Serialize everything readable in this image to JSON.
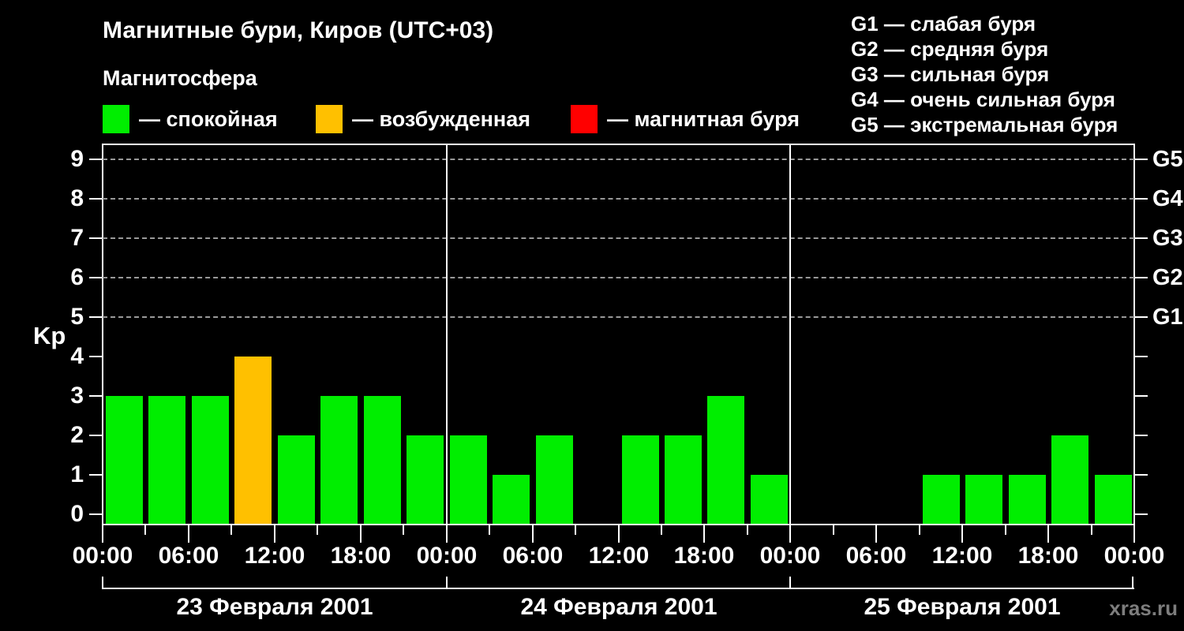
{
  "title": "Магнитные бури, Киров (UTC+03)",
  "subtitle": "Магнитосфера",
  "legend": {
    "quiet": {
      "label": "— спокойная",
      "color": "#00ee00"
    },
    "excited": {
      "label": "— возбужденная",
      "color": "#ffc000"
    },
    "storm": {
      "label": "— магнитная буря",
      "color": "#ff0000"
    }
  },
  "storm_scale": {
    "lines": [
      "G1 — слабая буря",
      "G2 — средняя буря",
      "G3 — сильная буря",
      "G4 — очень сильная буря",
      "G5 — экстремальная буря"
    ]
  },
  "watermark": "xras.ru",
  "chart_data": {
    "type": "bar",
    "title": "Магнитные бури, Киров (UTC+03)",
    "ylabel": "Kp",
    "ylim": [
      0,
      9.4
    ],
    "yticks": [
      0,
      1,
      2,
      3,
      4,
      5,
      6,
      7,
      8,
      9
    ],
    "grid_kp_levels": [
      5,
      6,
      7,
      8,
      9
    ],
    "right_axis_labels": [
      {
        "kp": 5,
        "label": "G1"
      },
      {
        "kp": 6,
        "label": "G2"
      },
      {
        "kp": 7,
        "label": "G3"
      },
      {
        "kp": 8,
        "label": "G4"
      },
      {
        "kp": 9,
        "label": "G5"
      }
    ],
    "hours_per_bar": 3,
    "x_tick_step_hours": 6,
    "x_tick_labels": [
      "00:00",
      "06:00",
      "12:00",
      "18:00",
      "00:00",
      "06:00",
      "12:00",
      "18:00",
      "00:00",
      "06:00",
      "12:00",
      "18:00",
      "00:00"
    ],
    "days": [
      {
        "date": "23 Февраля 2001",
        "kp_values": [
          3,
          3,
          3,
          4,
          2,
          3,
          3,
          2
        ]
      },
      {
        "date": "24 Февраля 2001",
        "kp_values": [
          2,
          1,
          2,
          0,
          2,
          2,
          3,
          1
        ]
      },
      {
        "date": "25 Февраля 2001",
        "kp_values": [
          0,
          0,
          0,
          1,
          1,
          1,
          2,
          1
        ]
      }
    ],
    "bar_colors": {
      "quiet_kp_le_3": "#00ee00",
      "excited_kp_4": "#ffc000",
      "storm_kp_ge_5": "#ff0000"
    },
    "grid": "dashed-storm-levels-only",
    "legend_position": "top"
  }
}
